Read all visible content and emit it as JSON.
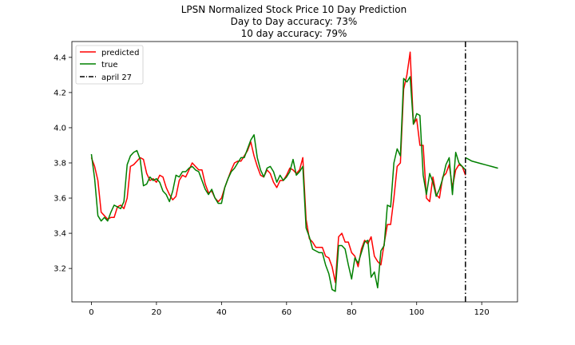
{
  "chart_data": {
    "type": "line",
    "title_lines": [
      "LPSN Normalized Stock Price 10 Day Prediction",
      "Day to Day accuracy: 73%",
      "10 day accuracy: 79%"
    ],
    "xlim": [
      -6,
      131
    ],
    "ylim": [
      3.01,
      4.49
    ],
    "x_ticks": [
      0,
      20,
      40,
      60,
      80,
      100,
      120
    ],
    "y_ticks": [
      3.2,
      3.4,
      3.6,
      3.8,
      4.0,
      4.2,
      4.4
    ],
    "x_tick_labels": [
      "0",
      "20",
      "40",
      "60",
      "80",
      "100",
      "120"
    ],
    "y_tick_labels": [
      "3.2",
      "3.4",
      "3.6",
      "3.8",
      "4.0",
      "4.2",
      "4.4"
    ],
    "grid": false,
    "legend": {
      "placement": "top-left",
      "entries": [
        "predicted",
        "true",
        "april 27"
      ]
    },
    "colors": {
      "predicted": "#ff0000",
      "true": "#008000",
      "vline": "#000000"
    },
    "series": [
      {
        "name": "predicted",
        "x": [
          0,
          1,
          2,
          3,
          4,
          5,
          6,
          7,
          8,
          9,
          10,
          11,
          12,
          13,
          14,
          15,
          16,
          17,
          18,
          19,
          20,
          21,
          22,
          23,
          24,
          25,
          26,
          27,
          28,
          29,
          30,
          31,
          32,
          33,
          34,
          35,
          36,
          37,
          38,
          39,
          40,
          41,
          42,
          43,
          44,
          45,
          46,
          47,
          48,
          49,
          50,
          51,
          52,
          53,
          54,
          55,
          56,
          57,
          58,
          59,
          60,
          61,
          62,
          63,
          64,
          65,
          66,
          67,
          68,
          69,
          70,
          71,
          72,
          73,
          74,
          75,
          76,
          77,
          78,
          79,
          80,
          81,
          82,
          83,
          84,
          85,
          86,
          87,
          88,
          89,
          90,
          91,
          92,
          93,
          94,
          95,
          96,
          97,
          98,
          99,
          100,
          101,
          102,
          103,
          104,
          105,
          106,
          107,
          108,
          109,
          110,
          111,
          112,
          113,
          114,
          115
        ],
        "values": [
          3.83,
          3.78,
          3.7,
          3.52,
          3.5,
          3.48,
          3.49,
          3.49,
          3.55,
          3.56,
          3.54,
          3.6,
          3.78,
          3.79,
          3.81,
          3.83,
          3.82,
          3.74,
          3.7,
          3.71,
          3.69,
          3.73,
          3.72,
          3.66,
          3.62,
          3.59,
          3.61,
          3.7,
          3.73,
          3.72,
          3.76,
          3.8,
          3.78,
          3.76,
          3.76,
          3.68,
          3.63,
          3.64,
          3.6,
          3.58,
          3.6,
          3.66,
          3.71,
          3.76,
          3.8,
          3.81,
          3.81,
          3.84,
          3.87,
          3.92,
          3.84,
          3.78,
          3.73,
          3.72,
          3.76,
          3.74,
          3.69,
          3.66,
          3.7,
          3.7,
          3.73,
          3.77,
          3.76,
          3.74,
          3.76,
          3.83,
          3.48,
          3.37,
          3.35,
          3.32,
          3.32,
          3.32,
          3.27,
          3.26,
          3.21,
          3.12,
          3.38,
          3.4,
          3.35,
          3.35,
          3.29,
          3.27,
          3.21,
          3.31,
          3.36,
          3.34,
          3.38,
          3.27,
          3.24,
          3.22,
          3.34,
          3.45,
          3.45,
          3.6,
          3.78,
          3.8,
          4.22,
          4.3,
          4.43,
          4.02,
          4.05,
          3.9,
          3.9,
          3.6,
          3.58,
          3.72,
          3.62,
          3.6,
          3.72,
          3.74,
          3.79,
          3.66,
          3.76,
          3.79,
          3.78,
          3.73
        ]
      },
      {
        "name": "true",
        "x": [
          0,
          1,
          2,
          3,
          4,
          5,
          6,
          7,
          8,
          9,
          10,
          11,
          12,
          13,
          14,
          15,
          16,
          17,
          18,
          19,
          20,
          21,
          22,
          23,
          24,
          25,
          26,
          27,
          28,
          29,
          30,
          31,
          32,
          33,
          34,
          35,
          36,
          37,
          38,
          39,
          40,
          41,
          42,
          43,
          44,
          45,
          46,
          47,
          48,
          49,
          50,
          51,
          52,
          53,
          54,
          55,
          56,
          57,
          58,
          59,
          60,
          61,
          62,
          63,
          64,
          65,
          66,
          67,
          68,
          69,
          70,
          71,
          72,
          73,
          74,
          75,
          76,
          77,
          78,
          79,
          80,
          81,
          82,
          83,
          84,
          85,
          86,
          87,
          88,
          89,
          90,
          91,
          92,
          93,
          94,
          95,
          96,
          97,
          98,
          99,
          100,
          101,
          102,
          103,
          104,
          105,
          106,
          107,
          108,
          109,
          110,
          111,
          112,
          113,
          114,
          115
        ],
        "values": [
          3.85,
          3.71,
          3.5,
          3.47,
          3.49,
          3.47,
          3.52,
          3.56,
          3.55,
          3.54,
          3.58,
          3.79,
          3.84,
          3.86,
          3.87,
          3.82,
          3.67,
          3.68,
          3.72,
          3.7,
          3.71,
          3.69,
          3.64,
          3.62,
          3.58,
          3.64,
          3.73,
          3.72,
          3.75,
          3.75,
          3.77,
          3.78,
          3.76,
          3.75,
          3.7,
          3.65,
          3.62,
          3.65,
          3.6,
          3.57,
          3.57,
          3.66,
          3.71,
          3.75,
          3.77,
          3.8,
          3.83,
          3.83,
          3.88,
          3.93,
          3.96,
          3.83,
          3.76,
          3.72,
          3.77,
          3.78,
          3.75,
          3.69,
          3.73,
          3.7,
          3.72,
          3.75,
          3.82,
          3.73,
          3.75,
          3.78,
          3.43,
          3.38,
          3.31,
          3.3,
          3.29,
          3.29,
          3.22,
          3.17,
          3.08,
          3.07,
          3.33,
          3.33,
          3.31,
          3.22,
          3.14,
          3.26,
          3.23,
          3.29,
          3.35,
          3.36,
          3.15,
          3.18,
          3.09,
          3.3,
          3.33,
          3.56,
          3.55,
          3.8,
          3.88,
          3.84,
          4.28,
          4.26,
          4.29,
          4.02,
          4.08,
          4.07,
          3.73,
          3.62,
          3.74,
          3.69,
          3.61,
          3.65,
          3.71,
          3.79,
          3.83,
          3.62,
          3.86,
          3.8,
          3.78,
          3.76
        ]
      },
      {
        "name": "true-forecast",
        "x": [
          115,
          116,
          117,
          118,
          119,
          120,
          121,
          122,
          123,
          124,
          125
        ],
        "values": [
          3.83,
          3.82,
          3.81,
          3.805,
          3.8,
          3.795,
          3.79,
          3.785,
          3.78,
          3.775,
          3.77
        ]
      }
    ],
    "vline": {
      "name": "april 27",
      "x": 115
    }
  }
}
